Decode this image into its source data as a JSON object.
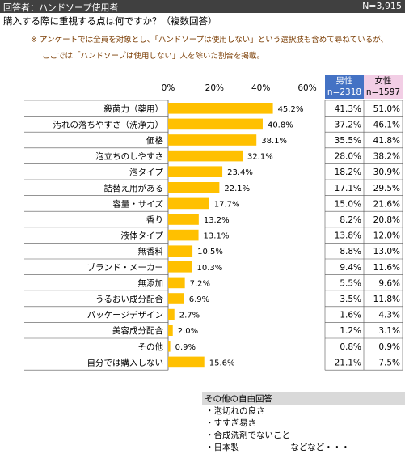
{
  "header": {
    "respondents": "回答者：ハンドソープ使用者",
    "n_total": "N=3,915"
  },
  "question": "購入する際に重視する点は何ですか？（複数回答）",
  "notes": [
    "※ アンケートでは全員を対象とし、「ハンドソープは使用しない」という選択肢も含めて尋ねているが、",
    "ここでは「ハンドソープは使用しない」人を除いた割合を掲載。"
  ],
  "table_headers": {
    "male": {
      "label": "男性",
      "n": "n=2318"
    },
    "female": {
      "label": "女性",
      "n": "n=1597"
    }
  },
  "chart_data": {
    "type": "bar",
    "orientation": "horizontal",
    "categories": [
      "殺菌力（薬用）",
      "汚れの落ちやすさ（洗浄力）",
      "価格",
      "泡立ちのしやすさ",
      "泡タイプ",
      "詰替え用がある",
      "容量・サイズ",
      "香り",
      "液体タイプ",
      "無香料",
      "ブランド・メーカー",
      "無添加",
      "うるおい成分配合",
      "パッケージデザイン",
      "美容成分配合",
      "その他",
      "自分では購入しない"
    ],
    "values": [
      45.2,
      40.8,
      38.1,
      32.1,
      23.4,
      22.1,
      17.7,
      13.2,
      13.1,
      10.5,
      10.3,
      7.2,
      6.9,
      2.7,
      2.0,
      0.9,
      15.6
    ],
    "value_labels": [
      "45.2%",
      "40.8%",
      "38.1%",
      "32.1%",
      "23.4%",
      "22.1%",
      "17.7%",
      "13.2%",
      "13.1%",
      "10.5%",
      "10.3%",
      "7.2%",
      "6.9%",
      "2.7%",
      "2.0%",
      "0.9%",
      "15.6%"
    ],
    "ticks": [
      "0%",
      "20%",
      "40%",
      "60%"
    ],
    "xlim": [
      0,
      60
    ],
    "bar_color": "#ffc000",
    "male_labels": [
      "41.3%",
      "37.2%",
      "35.5%",
      "28.0%",
      "18.2%",
      "17.1%",
      "15.0%",
      "8.2%",
      "13.8%",
      "8.8%",
      "9.4%",
      "5.5%",
      "3.5%",
      "1.6%",
      "1.2%",
      "0.8%",
      "21.1%"
    ],
    "female_labels": [
      "51.0%",
      "46.1%",
      "41.8%",
      "38.2%",
      "30.9%",
      "29.5%",
      "21.6%",
      "20.8%",
      "12.0%",
      "13.0%",
      "11.6%",
      "9.6%",
      "11.8%",
      "4.3%",
      "3.1%",
      "0.9%",
      "7.5%"
    ]
  },
  "free_answers": {
    "title": "その他の自由回答",
    "items": [
      "・泡切れの良さ",
      "・すすぎ易さ",
      "・合成洗剤でないこと",
      "・日本製"
    ],
    "etc": "などなど・・・"
  },
  "colors": {
    "male_header": "#4472c4",
    "female_header": "#f2cee5",
    "topbar": "#404040"
  }
}
